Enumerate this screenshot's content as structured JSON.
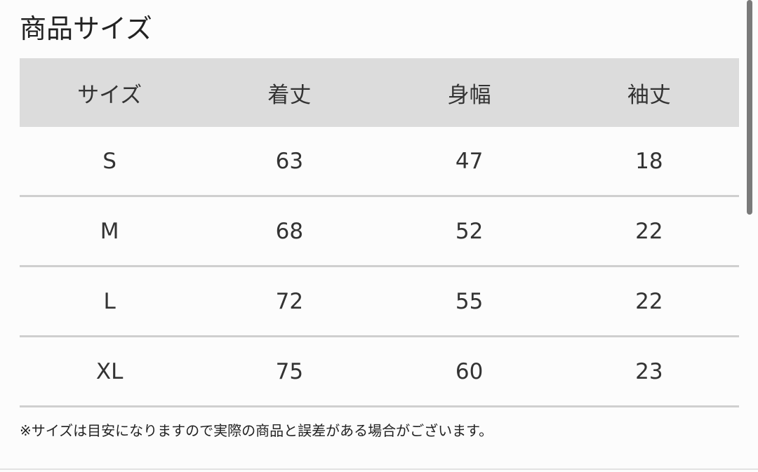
{
  "title": "商品サイズ",
  "table": {
    "headers": [
      "サイズ",
      "着丈",
      "身幅",
      "袖丈"
    ],
    "rows": [
      [
        "S",
        "63",
        "47",
        "18"
      ],
      [
        "M",
        "68",
        "52",
        "22"
      ],
      [
        "L",
        "72",
        "55",
        "22"
      ],
      [
        "XL",
        "75",
        "60",
        "23"
      ]
    ]
  },
  "note": "※サイズは目安になりますので実際の商品と誤差がある場合がございます。"
}
